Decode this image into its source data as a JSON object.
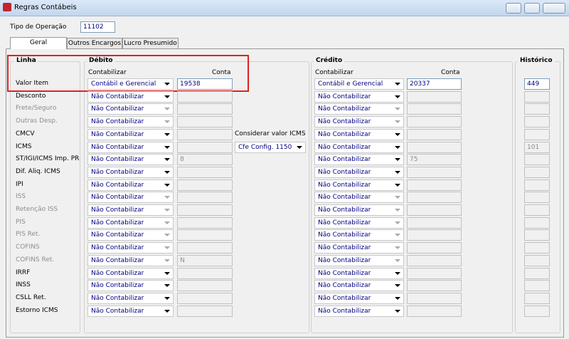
{
  "window": {
    "title": "Regras Contábeis"
  },
  "header": {
    "operation_label": "Tipo de Operação",
    "operation_value": "11102"
  },
  "tabs": [
    "Geral",
    "Outros Encargos",
    "Lucro Presumido"
  ],
  "groups": {
    "line": "Linha",
    "debit": "Débito",
    "credit": "Crédito",
    "history": "Histórico"
  },
  "subheaders": {
    "debit_account_mode": "Contabilizar",
    "debit_account": "Conta",
    "credit_account_mode": "Contabilizar",
    "credit_account": "Conta"
  },
  "icms_option": {
    "label": "Considerar valor ICMS",
    "value": "Cfe Config. 1150"
  },
  "rows": [
    {
      "label": "Valor Item",
      "active": true,
      "debit": {
        "mode": "Contábil e Gerencial",
        "account": "19538"
      },
      "credit": {
        "mode": "Contábil e Gerencial",
        "account": "20337"
      },
      "history": "449"
    },
    {
      "label": "Desconto",
      "debit": {
        "mode": "Não Contabilizar"
      },
      "credit": {
        "mode": "Não Contabilizar"
      }
    },
    {
      "label": "Frete/Seguro",
      "disabled": true,
      "debit": {
        "mode": "Não Contabilizar"
      },
      "credit": {
        "mode": "Não Contabilizar"
      }
    },
    {
      "label": "Outras Desp.",
      "disabled": true,
      "debit": {
        "mode": "Não Contabilizar"
      },
      "credit": {
        "mode": "Não Contabilizar"
      }
    },
    {
      "label": "CMCV",
      "debit": {
        "mode": "Não Contabilizar"
      },
      "credit": {
        "mode": "Não Contabilizar"
      }
    },
    {
      "label": "ICMS",
      "debit": {
        "mode": "Não Contabilizar"
      },
      "credit": {
        "mode": "Não Contabilizar"
      },
      "history": "101"
    },
    {
      "label": "ST/IGI/ICMS Imp. PR",
      "debit": {
        "mode": "Não Contabilizar",
        "account": "8"
      },
      "credit": {
        "mode": "Não Contabilizar",
        "account": "75"
      }
    },
    {
      "label": "Dif. Aliq. ICMS",
      "debit": {
        "mode": "Não Contabilizar"
      },
      "credit": {
        "mode": "Não Contabilizar"
      }
    },
    {
      "label": "IPI",
      "debit": {
        "mode": "Não Contabilizar"
      },
      "credit": {
        "mode": "Não Contabilizar"
      }
    },
    {
      "label": "ISS",
      "disabled": true,
      "debit": {
        "mode": "Não Contabilizar"
      },
      "credit": {
        "mode": "Não Contabilizar"
      }
    },
    {
      "label": "Retenção ISS",
      "disabled": true,
      "debit": {
        "mode": "Não Contabilizar"
      },
      "credit": {
        "mode": "Não Contabilizar"
      }
    },
    {
      "label": "PIS",
      "disabled": true,
      "debit": {
        "mode": "Não Contabilizar"
      },
      "credit": {
        "mode": "Não Contabilizar"
      }
    },
    {
      "label": "PIS Ret.",
      "disabled": true,
      "debit": {
        "mode": "Não Contabilizar"
      },
      "credit": {
        "mode": "Não Contabilizar"
      }
    },
    {
      "label": "COFINS",
      "disabled": true,
      "debit": {
        "mode": "Não Contabilizar"
      },
      "credit": {
        "mode": "Não Contabilizar"
      }
    },
    {
      "label": "COFINS Ret.",
      "disabled": true,
      "debit": {
        "mode": "Não Contabilizar",
        "account": "N"
      },
      "credit": {
        "mode": "Não Contabilizar"
      }
    },
    {
      "label": "IRRF",
      "debit": {
        "mode": "Não Contabilizar"
      },
      "credit": {
        "mode": "Não Contabilizar"
      }
    },
    {
      "label": "INSS",
      "debit": {
        "mode": "Não Contabilizar"
      },
      "credit": {
        "mode": "Não Contabilizar"
      }
    },
    {
      "label": "CSLL Ret.",
      "debit": {
        "mode": "Não Contabilizar"
      },
      "credit": {
        "mode": "Não Contabilizar"
      }
    },
    {
      "label": "Estorno ICMS",
      "debit": {
        "mode": "Não Contabilizar"
      },
      "credit": {
        "mode": "Não Contabilizar"
      }
    }
  ]
}
